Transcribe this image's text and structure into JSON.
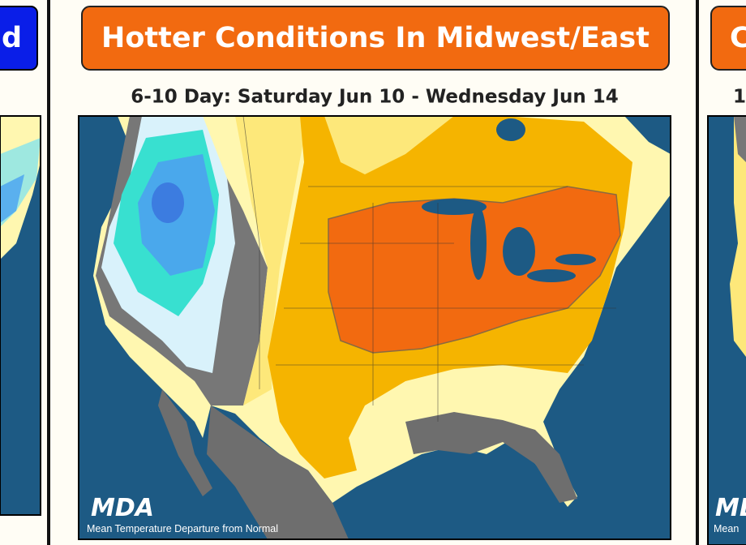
{
  "left_panel": {
    "banner": "d"
  },
  "center_panel": {
    "banner": "Hotter Conditions In Midwest/East",
    "subtitle": "6-10 Day: Saturday Jun 10 - Wednesday Jun 14",
    "logo": "MDA",
    "caption": "Mean Temperature Departure from Normal"
  },
  "right_panel": {
    "banner": "C",
    "subtitle": "1",
    "logo": "MDA",
    "caption": "Mean"
  }
}
